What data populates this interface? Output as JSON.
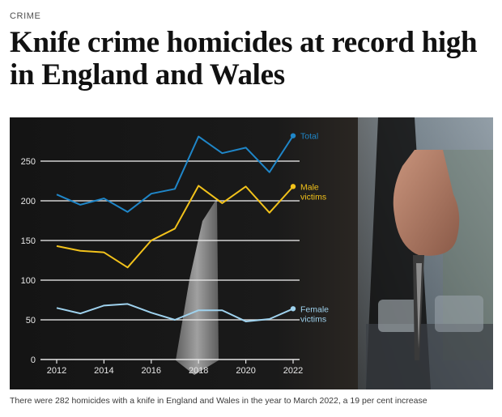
{
  "section": "CRIME",
  "headline": "Knife crime homicides at record high in England and Wales",
  "caption": "There were 282 homicides with a knife in England and Wales in the year to March 2022, a 19 per cent increase",
  "colors": {
    "total": "#1f86c8",
    "male": "#f2c21b",
    "female": "#9fd2ee",
    "grid": "#e6e6e6",
    "axis_text": "#e8e8e8"
  },
  "chart_data": {
    "type": "line",
    "x": [
      2012,
      2013,
      2014,
      2015,
      2016,
      2017,
      2018,
      2019,
      2020,
      2021,
      2022
    ],
    "xticks": [
      2012,
      2014,
      2016,
      2018,
      2020,
      2022
    ],
    "yticks": [
      0,
      50,
      100,
      150,
      200,
      250
    ],
    "ylim": [
      0,
      300
    ],
    "grid": true,
    "series": [
      {
        "name": "Total",
        "label_lines": [
          "Total"
        ],
        "color": "#1f86c8",
        "values": [
          208,
          195,
          203,
          186,
          209,
          215,
          281,
          260,
          267,
          236,
          282
        ]
      },
      {
        "name": "Male victims",
        "label_lines": [
          "Male",
          "victims"
        ],
        "color": "#f2c21b",
        "values": [
          143,
          137,
          135,
          116,
          150,
          165,
          219,
          197,
          218,
          185,
          218
        ]
      },
      {
        "name": "Female victims",
        "label_lines": [
          "Female",
          "victims"
        ],
        "color": "#9fd2ee",
        "values": [
          65,
          58,
          68,
          70,
          59,
          50,
          62,
          62,
          48,
          51,
          64
        ]
      }
    ]
  }
}
